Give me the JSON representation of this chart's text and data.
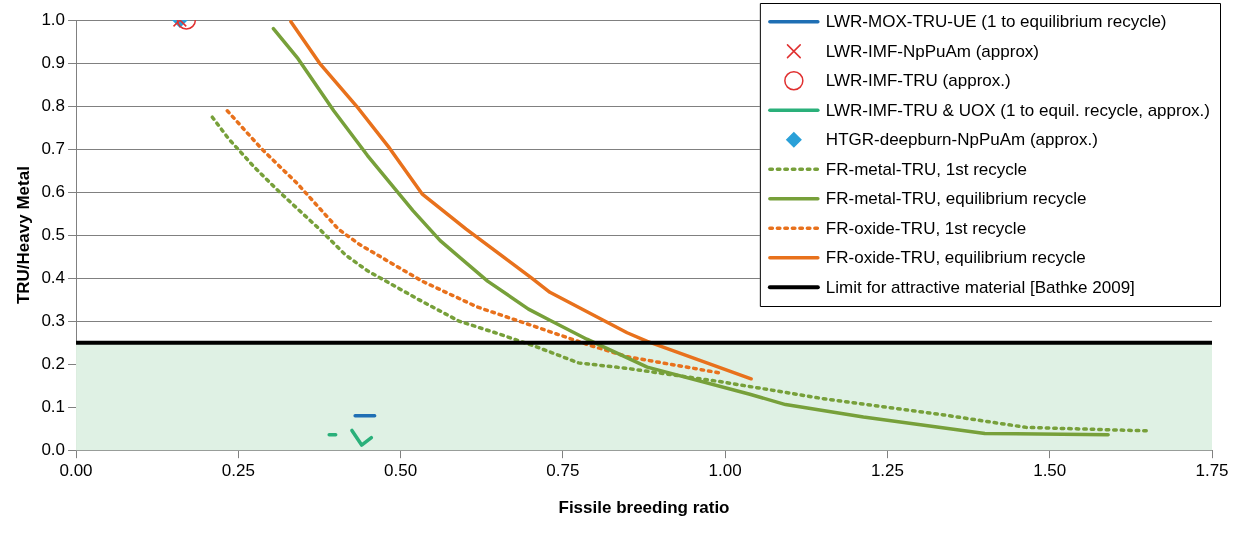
{
  "chart_data": {
    "type": "line",
    "xlabel": "Fissile breeding ratio",
    "ylabel": "TRU/Heavy Metal",
    "xlim": [
      0,
      1.75
    ],
    "ylim": [
      0,
      1.0
    ],
    "xticks": [
      {
        "value": 0,
        "label": "0.00"
      },
      {
        "value": 0.25,
        "label": "0.25"
      },
      {
        "value": 0.5,
        "label": "0.50"
      },
      {
        "value": 0.75,
        "label": "0.75"
      },
      {
        "value": 1,
        "label": "1.00"
      },
      {
        "value": 1.25,
        "label": "1.25"
      },
      {
        "value": 1.5,
        "label": "1.50"
      },
      {
        "value": 1.75,
        "label": "1.75"
      }
    ],
    "yticks": [
      {
        "value": 0,
        "label": "0.0"
      },
      0.1,
      0.2,
      0.3,
      0.4,
      0.5,
      0.6,
      0.7,
      0.8,
      0.9,
      {
        "value": 1,
        "label": "1.0"
      }
    ],
    "grid": "y",
    "legend": "top right",
    "marker": "none",
    "series": [
      {
        "name": "LWR-MOX-TRU-UE (1 to equilibrium recycle)",
        "type": "line",
        "color": "#1f6fb4",
        "x": [
          0.43,
          0.46
        ],
        "values": [
          0.08,
          0.08
        ]
      },
      {
        "name": "LWR-IMF-NpPuAm (approx)",
        "type": "scatter",
        "marker": "cross",
        "color": "#e03030",
        "x": [
          0.16
        ],
        "values": [
          1.0
        ]
      },
      {
        "name": "LWR-IMF-TRU (approx.)",
        "type": "scatter",
        "marker": "circle",
        "color": "#e03030",
        "x": [
          0.17
        ],
        "values": [
          1.0
        ]
      },
      {
        "name": "LWR-IMF-TRU & UOX (1 to equil. recycle, approx.)",
        "type": "line",
        "color": "#2ab07a",
        "x": [
          0.39,
          0.4,
          0.41,
          0.425,
          0.44,
          0.455
        ],
        "values": [
          0.036,
          0.036,
          null,
          0.046,
          0.012,
          0.029
        ]
      },
      {
        "name": "HTGR-deepburn-NpPuAm (approx.)",
        "type": "scatter",
        "marker": "diamond",
        "color": "#2aa0d8",
        "x": [
          0.16
        ],
        "values": [
          1.0
        ]
      },
      {
        "name": "FR-metal-TRU, 1st recycle",
        "type": "line",
        "line_style": "dotted",
        "color": "#77a03a",
        "x": [
          0.21,
          0.235,
          0.274,
          0.308,
          0.342,
          0.375,
          0.415,
          0.449,
          0.528,
          0.59,
          0.646,
          0.708,
          0.774,
          0.85,
          0.994,
          1.15,
          1.337,
          1.464,
          1.65
        ],
        "values": [
          0.774,
          0.724,
          0.659,
          0.608,
          0.56,
          0.514,
          0.454,
          0.417,
          0.35,
          0.3,
          0.273,
          0.241,
          0.203,
          0.19,
          0.159,
          0.12,
          0.082,
          0.053,
          0.045
        ]
      },
      {
        "name": "FR-metal-TRU, equilibrium recycle",
        "type": "line",
        "color": "#77a03a",
        "x": [
          0.304,
          0.342,
          0.397,
          0.449,
          0.519,
          0.561,
          0.634,
          0.697,
          0.73,
          0.787,
          0.88,
          1.038,
          1.093,
          1.213,
          1.4,
          1.59
        ],
        "values": [
          0.98,
          0.91,
          0.789,
          0.685,
          0.557,
          0.487,
          0.393,
          0.328,
          0.302,
          0.258,
          0.193,
          0.13,
          0.106,
          0.077,
          0.039,
          0.036
        ]
      },
      {
        "name": "FR-oxide-TRU, 1st recycle",
        "type": "line",
        "line_style": "dotted",
        "color": "#e8711c",
        "x": [
          0.233,
          0.285,
          0.342,
          0.404,
          0.437,
          0.533,
          0.618,
          0.702,
          0.787,
          0.85,
          0.994
        ],
        "values": [
          0.789,
          0.702,
          0.618,
          0.514,
          0.478,
          0.393,
          0.333,
          0.29,
          0.246,
          0.217,
          0.179
        ]
      },
      {
        "name": "FR-oxide-TRU, equilibrium recycle",
        "type": "line",
        "color": "#e8711c",
        "x": [
          0.331,
          0.375,
          0.432,
          0.483,
          0.533,
          0.601,
          0.702,
          0.73,
          0.849,
          0.88,
          1.04
        ],
        "values": [
          0.996,
          0.9,
          0.8,
          0.702,
          0.596,
          0.514,
          0.4,
          0.367,
          0.273,
          0.253,
          0.166
        ]
      }
    ],
    "ref_lines": [
      {
        "axis": "y",
        "value": 0.25,
        "label": "Limit for attractive material [Bathke 2009]",
        "color": "#000000"
      }
    ],
    "bands": [
      {
        "axis": "y",
        "from": 0,
        "to": 0.25,
        "color": "#dff1e4"
      }
    ]
  }
}
